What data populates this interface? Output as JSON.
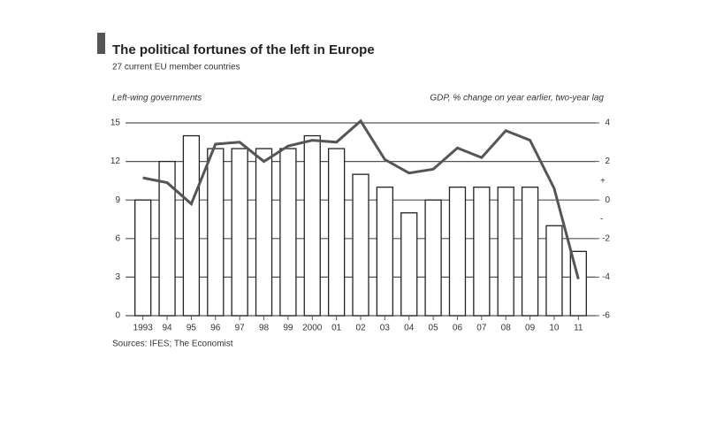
{
  "chart_data": {
    "type": "bar_line",
    "title": "The political fortunes of the left in Europe",
    "subtitle": "27 current EU member countries",
    "y_label": "Left-wing governments",
    "y2_label": "GDP, % change on year earlier, two-year lag",
    "source": "Sources: IFES; The Economist",
    "annotations": [
      "+",
      "-"
    ],
    "categories": [
      "1993",
      "94",
      "95",
      "96",
      "97",
      "98",
      "99",
      "2000",
      "01",
      "02",
      "03",
      "04",
      "05",
      "06",
      "07",
      "08",
      "09",
      "10",
      "11"
    ],
    "series": [
      {
        "name": "Left-wing governments",
        "type": "bar",
        "color": "#ffffff",
        "values": [
          9,
          12,
          14,
          13,
          13,
          13,
          13,
          14,
          13,
          11,
          10,
          8,
          9,
          10,
          10,
          10,
          10,
          7,
          5
        ]
      },
      {
        "name": "GDP",
        "type": "line",
        "axis": "y2",
        "color": "#555555",
        "values": [
          1.15,
          0.9,
          -0.2,
          2.9,
          3.0,
          2.0,
          2.8,
          3.1,
          3.0,
          4.1,
          2.1,
          1.4,
          1.6,
          2.7,
          2.2,
          3.6,
          3.1,
          0.6,
          -4.1
        ]
      }
    ],
    "ylim": [
      0,
      15
    ],
    "yticks": [
      0,
      3,
      6,
      9,
      12,
      15
    ],
    "y2lim": [
      -6,
      4
    ],
    "y2ticks": [
      -6,
      -4,
      -2,
      0,
      2,
      4
    ],
    "grid": true
  }
}
